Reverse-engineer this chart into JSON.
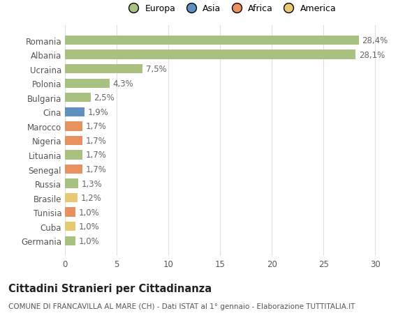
{
  "categories": [
    "Germania",
    "Cuba",
    "Tunisia",
    "Brasile",
    "Russia",
    "Senegal",
    "Lituania",
    "Nigeria",
    "Marocco",
    "Cina",
    "Bulgaria",
    "Polonia",
    "Ucraina",
    "Albania",
    "Romania"
  ],
  "values": [
    1.0,
    1.0,
    1.0,
    1.2,
    1.3,
    1.7,
    1.7,
    1.7,
    1.7,
    1.9,
    2.5,
    4.3,
    7.5,
    28.1,
    28.4
  ],
  "labels": [
    "1,0%",
    "1,0%",
    "1,0%",
    "1,2%",
    "1,3%",
    "1,7%",
    "1,7%",
    "1,7%",
    "1,7%",
    "1,9%",
    "2,5%",
    "4,3%",
    "7,5%",
    "28,1%",
    "28,4%"
  ],
  "colors": [
    "#a8c080",
    "#e8c870",
    "#e89060",
    "#e8c870",
    "#a8c080",
    "#e89060",
    "#a8c080",
    "#e89060",
    "#e89060",
    "#6090c0",
    "#a8c080",
    "#a8c080",
    "#a8c080",
    "#a8c080",
    "#a8c080"
  ],
  "legend_labels": [
    "Europa",
    "Asia",
    "Africa",
    "America"
  ],
  "legend_colors": [
    "#a8c080",
    "#6090c0",
    "#e89060",
    "#e8c870"
  ],
  "title_bold": "Cittadini Stranieri per Cittadinanza",
  "subtitle": "COMUNE DI FRANCAVILLA AL MARE (CH) - Dati ISTAT al 1° gennaio - Elaborazione TUTTITALIA.IT",
  "xlim": [
    0,
    32
  ],
  "xticks": [
    0,
    5,
    10,
    15,
    20,
    25,
    30
  ],
  "background_color": "#ffffff",
  "grid_color": "#e0e0e0",
  "bar_height": 0.65,
  "label_fontsize": 8.5,
  "tick_fontsize": 8.5,
  "title_fontsize": 10.5,
  "subtitle_fontsize": 7.5
}
